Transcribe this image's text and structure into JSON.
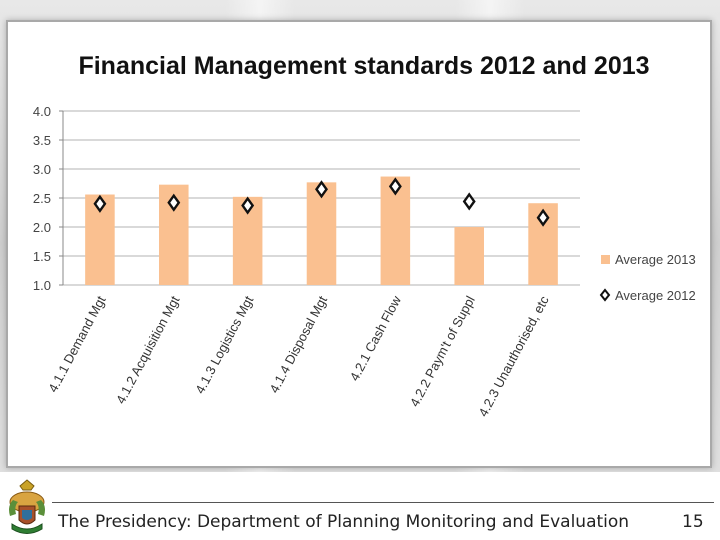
{
  "chart_data": {
    "type": "bar",
    "title": "Financial Management standards 2012 and 2013",
    "categories": [
      "4.1.1 Demand Mgt",
      "4.1.2 Acquisition Mgt",
      "4.1.3 Logistics Mgt",
      "4.1.4 Disposal Mgt",
      "4.2.1 Cash Flow",
      "4.2.2 Paym't of Suppl",
      "4.2.3 Unauthorised, etc"
    ],
    "series": [
      {
        "name": "Average 2013",
        "marker": "bar",
        "values": [
          2.56,
          2.73,
          2.52,
          2.77,
          2.87,
          2.0,
          2.41
        ]
      },
      {
        "name": "Average 2012",
        "marker": "diamond",
        "values": [
          2.4,
          2.42,
          2.37,
          2.65,
          2.7,
          2.44,
          2.16
        ]
      }
    ],
    "ylim": [
      1.0,
      4.0
    ],
    "yticks": [
      "1.0",
      "1.5",
      "2.0",
      "2.5",
      "3.0",
      "3.5",
      "4.0"
    ],
    "xlabel": "",
    "ylabel": "",
    "grid": true,
    "legend_position": "right",
    "colors": {
      "bar": "#fac090",
      "gridline": "#b3b3b3",
      "diamond": "#111111"
    }
  },
  "footer": {
    "text": "The Presidency: Department of Planning Monitoring and Evaluation",
    "page_number": "15"
  },
  "icons": {
    "emblem": "coat-of-arms-icon"
  }
}
